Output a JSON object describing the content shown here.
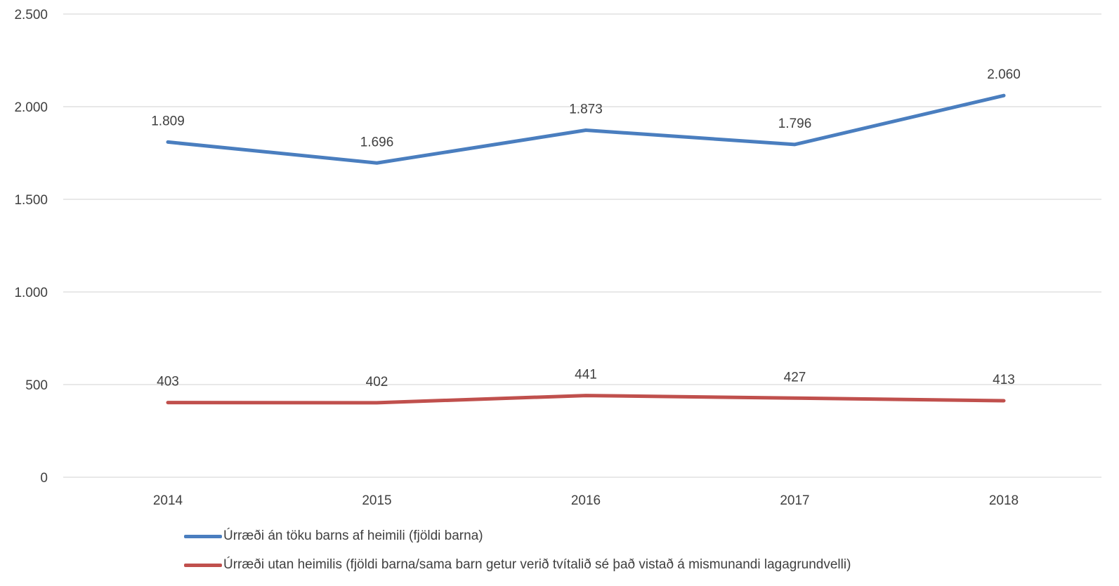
{
  "chart_data": {
    "type": "line",
    "categories": [
      "2014",
      "2015",
      "2016",
      "2017",
      "2018"
    ],
    "series": [
      {
        "name": "Úrræði án töku barns af heimili (fjöldi barna)",
        "values": [
          1809,
          1696,
          1873,
          1796,
          2060
        ],
        "labels": [
          "1.809",
          "1.696",
          "1.873",
          "1.796",
          "2.060"
        ],
        "color": "#4a7ebf"
      },
      {
        "name": "Úrræði utan heimilis (fjöldi barna/sama barn getur verið tvítalið sé það vistað á mismunandi lagagrundvelli)",
        "values": [
          403,
          402,
          441,
          427,
          413
        ],
        "labels": [
          "403",
          "402",
          "441",
          "427",
          "413"
        ],
        "color": "#c0504d"
      }
    ],
    "y_ticks": [
      0,
      500,
      1000,
      1500,
      2000,
      2500
    ],
    "y_tick_labels": [
      "0",
      "500",
      "1.000",
      "1.500",
      "2.000",
      "2.500"
    ],
    "ylim": [
      0,
      2500
    ],
    "grid": true,
    "legend_position": "bottom",
    "gridline_color": "#d9d9d9"
  }
}
